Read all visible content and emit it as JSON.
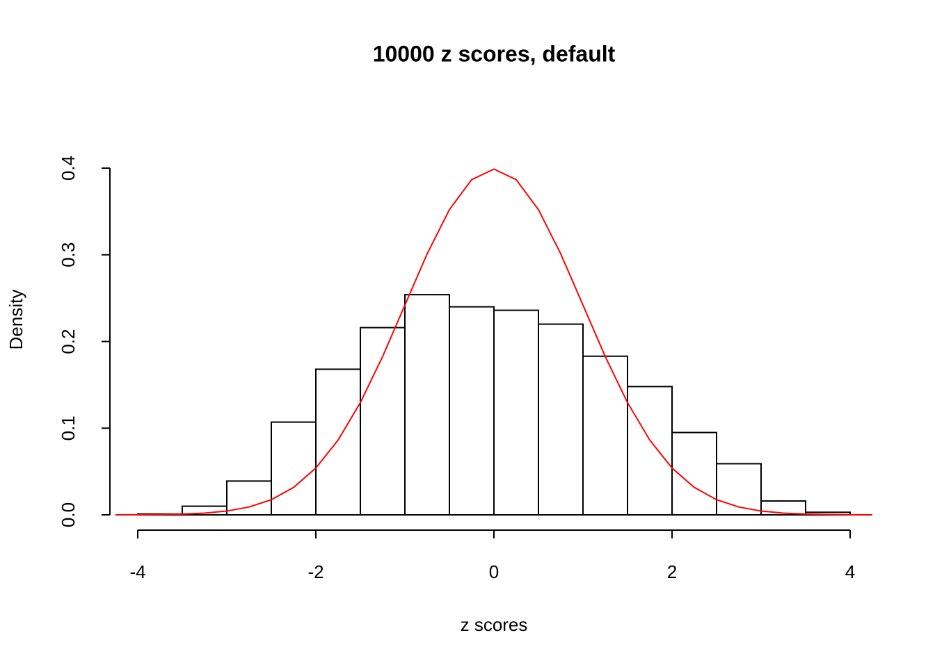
{
  "chart_data": {
    "type": "histogram",
    "title": "10000 z scores, default",
    "xlabel": "z scores",
    "ylabel": "Density",
    "bins": [
      -4,
      -3.5,
      -3,
      -2.5,
      -2,
      -1.5,
      -1,
      -0.5,
      0,
      0.5,
      1,
      1.5,
      2,
      2.5,
      3,
      3.5,
      4
    ],
    "values": [
      0.001,
      0.01,
      0.039,
      0.107,
      0.168,
      0.216,
      0.254,
      0.24,
      0.236,
      0.22,
      0.183,
      0.148,
      0.095,
      0.059,
      0.016,
      0.003
    ],
    "color": "#ffffff",
    "edgecolor": "#000000",
    "curve": {
      "color": "#ff0000",
      "x": [
        -4.25,
        -4,
        -3.75,
        -3.5,
        -3.25,
        -3,
        -2.75,
        -2.5,
        -2.25,
        -2,
        -1.75,
        -1.5,
        -1.25,
        -1,
        -0.75,
        -0.5,
        -0.25,
        0,
        0.25,
        0.5,
        0.75,
        1,
        1.25,
        1.5,
        1.75,
        2,
        2.25,
        2.5,
        2.75,
        3,
        3.25,
        3.5,
        3.75,
        4,
        4.25
      ],
      "values": [
        5e-05,
        0.0001,
        0.0004,
        0.0009,
        0.002,
        0.0044,
        0.0091,
        0.0175,
        0.0317,
        0.054,
        0.0863,
        0.1295,
        0.1826,
        0.242,
        0.3011,
        0.3521,
        0.3867,
        0.3989,
        0.3867,
        0.3521,
        0.3011,
        0.242,
        0.1826,
        0.1295,
        0.0863,
        0.054,
        0.0317,
        0.0175,
        0.0091,
        0.0044,
        0.002,
        0.0009,
        0.0004,
        0.0001,
        5e-05
      ]
    },
    "xlim": [
      -4.3125,
      4.3125
    ],
    "ylim": [
      -0.0176,
      0.416
    ],
    "xticks": [
      -4,
      -2,
      0,
      2,
      4
    ],
    "yticks": [
      {
        "value": 0,
        "label": "0.0"
      },
      0.1,
      0.2,
      0.3,
      0.4
    ]
  }
}
